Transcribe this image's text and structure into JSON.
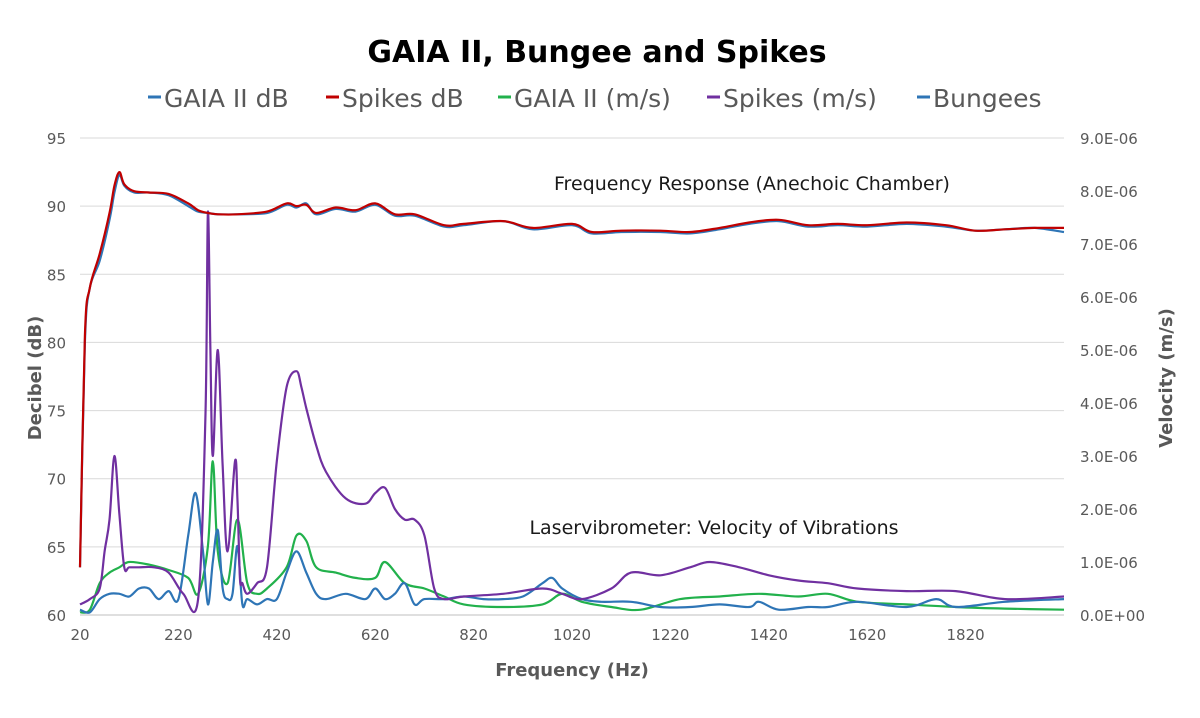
{
  "chart_data": {
    "type": "line",
    "title": "GAIA II, Bungee and Spikes",
    "xlabel": "Frequency (Hz)",
    "ylabel": "Decibel (dB)",
    "ylabel_right": "Velocity (m/s)",
    "xlim": [
      20,
      2020
    ],
    "ylim": [
      60,
      95
    ],
    "ylim_right": [
      0,
      9e-06
    ],
    "x_ticks": [
      "20",
      "220",
      "420",
      "620",
      "820",
      "1020",
      "1220",
      "1420",
      "1620",
      "1820"
    ],
    "y_ticks": [
      "60",
      "65",
      "70",
      "75",
      "80",
      "85",
      "90",
      "95"
    ],
    "y_right_ticks": [
      "0.0E+00",
      "1.0E-06",
      "2.0E-06",
      "3.0E-06",
      "4.0E-06",
      "5.0E-06",
      "6.0E-06",
      "7.0E-06",
      "8.0E-06",
      "9.0E-06"
    ],
    "grid": "horizontal",
    "legend_position": "top",
    "annotations": [
      "Frequency Response (Anechoic Chamber)",
      "Laservibrometer: Velocity of Vibrations"
    ],
    "series": [
      {
        "name": "GAIA II dB",
        "axis": "left",
        "color": "#2e75b6",
        "x": [
          20,
          30,
          40,
          60,
          80,
          90,
          100,
          110,
          130,
          160,
          200,
          240,
          260,
          280,
          300,
          340,
          400,
          440,
          460,
          480,
          500,
          540,
          580,
          620,
          660,
          700,
          760,
          800,
          880,
          940,
          1020,
          1060,
          1120,
          1200,
          1260,
          1320,
          1380,
          1440,
          1500,
          1560,
          1620,
          1700,
          1780,
          1840,
          1900,
          1960,
          2020
        ],
        "y": [
          63.5,
          80,
          84,
          86,
          89,
          91,
          92.3,
          91.5,
          91,
          91,
          90.8,
          90,
          89.6,
          89.5,
          89.4,
          89.4,
          89.5,
          90.1,
          89.9,
          90.2,
          89.4,
          89.8,
          89.6,
          90.1,
          89.3,
          89.3,
          88.5,
          88.6,
          88.9,
          88.3,
          88.6,
          88,
          88.1,
          88.1,
          88,
          88.3,
          88.7,
          88.9,
          88.5,
          88.6,
          88.5,
          88.7,
          88.5,
          88.2,
          88.3,
          88.4,
          88.1
        ]
      },
      {
        "name": "Spikes dB",
        "axis": "left",
        "color": "#c00000",
        "x": [
          20,
          30,
          40,
          60,
          80,
          90,
          100,
          110,
          130,
          160,
          200,
          240,
          260,
          280,
          300,
          340,
          400,
          440,
          460,
          480,
          500,
          540,
          580,
          620,
          660,
          700,
          760,
          800,
          880,
          940,
          1020,
          1060,
          1120,
          1200,
          1260,
          1320,
          1380,
          1440,
          1500,
          1560,
          1620,
          1700,
          1780,
          1840,
          1900,
          1960,
          2020
        ],
        "y": [
          63.5,
          80.5,
          84,
          86.5,
          89.5,
          91.5,
          92.5,
          91.6,
          91.1,
          91,
          90.9,
          90.2,
          89.7,
          89.5,
          89.4,
          89.4,
          89.6,
          90.2,
          90,
          90.1,
          89.5,
          89.9,
          89.7,
          90.2,
          89.4,
          89.4,
          88.6,
          88.7,
          88.9,
          88.4,
          88.7,
          88.1,
          88.2,
          88.2,
          88.1,
          88.4,
          88.8,
          89,
          88.6,
          88.7,
          88.6,
          88.8,
          88.6,
          88.2,
          88.3,
          88.4,
          88.4
        ]
      },
      {
        "name": "GAIA II (m/s)",
        "axis": "right",
        "color": "#22b14c",
        "x": [
          20,
          40,
          60,
          80,
          100,
          120,
          160,
          200,
          240,
          260,
          280,
          290,
          300,
          320,
          340,
          360,
          380,
          400,
          440,
          460,
          480,
          500,
          540,
          580,
          620,
          640,
          680,
          720,
          760,
          800,
          880,
          960,
          1000,
          1040,
          1100,
          1160,
          1240,
          1320,
          1400,
          1480,
          1540,
          1600,
          1700,
          1800,
          1900,
          2020
        ],
        "y": [
          5e-08,
          1e-07,
          6e-07,
          8e-07,
          9e-07,
          1e-06,
          9.5e-07,
          8.5e-07,
          7e-07,
          4e-07,
          1.3e-06,
          2.9e-06,
          1.2e-06,
          6e-07,
          1.8e-06,
          6e-07,
          4e-07,
          5e-07,
          9e-07,
          1.5e-06,
          1.4e-06,
          9e-07,
          8e-07,
          7e-07,
          7e-07,
          1e-06,
          6e-07,
          5e-07,
          3.5e-07,
          2e-07,
          1.5e-07,
          2e-07,
          4e-07,
          2.5e-07,
          1.5e-07,
          1e-07,
          3e-07,
          3.5e-07,
          4e-07,
          3.5e-07,
          4e-07,
          2.5e-07,
          2e-07,
          1.5e-07,
          1.2e-07,
          1e-07
        ]
      },
      {
        "name": "Spikes (m/s)",
        "axis": "right",
        "color": "#7030a0",
        "x": [
          20,
          40,
          60,
          70,
          80,
          90,
          100,
          110,
          120,
          140,
          170,
          200,
          230,
          260,
          275,
          280,
          285,
          290,
          300,
          310,
          320,
          335,
          340,
          345,
          350,
          360,
          380,
          400,
          420,
          440,
          460,
          470,
          480,
          500,
          520,
          560,
          600,
          620,
          640,
          660,
          680,
          700,
          720,
          740,
          760,
          800,
          880,
          960,
          1000,
          1040,
          1100,
          1140,
          1200,
          1260,
          1300,
          1360,
          1420,
          1480,
          1540,
          1600,
          1700,
          1800,
          1900,
          2020
        ],
        "y": [
          2e-07,
          3e-07,
          5e-07,
          1.2e-06,
          1.8e-06,
          3e-06,
          1.9e-06,
          9e-07,
          9e-07,
          9e-07,
          9e-07,
          8e-07,
          4e-07,
          3e-07,
          3.8e-06,
          7.6e-06,
          5e-06,
          3e-06,
          5e-06,
          2.8e-06,
          1.2e-06,
          2.9e-06,
          2.2e-06,
          7e-07,
          6e-07,
          4e-07,
          6e-07,
          9e-07,
          2.9e-06,
          4.3e-06,
          4.6e-06,
          4.3e-06,
          3.9e-06,
          3.2e-06,
          2.7e-06,
          2.2e-06,
          2.1e-06,
          2.3e-06,
          2.4e-06,
          2e-06,
          1.8e-06,
          1.8e-06,
          1.5e-06,
          5e-07,
          3e-07,
          3.5e-07,
          4e-07,
          5e-07,
          4e-07,
          3e-07,
          5e-07,
          8e-07,
          7.5e-07,
          9e-07,
          1e-06,
          9e-07,
          7.5e-07,
          6.5e-07,
          6e-07,
          5e-07,
          4.5e-07,
          4.5e-07,
          3e-07,
          3.5e-07
        ]
      },
      {
        "name": "Bungees",
        "axis": "right",
        "color": "#2e75b6",
        "x": [
          20,
          40,
          60,
          80,
          100,
          120,
          140,
          160,
          180,
          200,
          220,
          240,
          255,
          270,
          280,
          290,
          300,
          310,
          320,
          330,
          340,
          350,
          360,
          380,
          400,
          420,
          440,
          460,
          480,
          500,
          520,
          560,
          600,
          620,
          640,
          660,
          680,
          700,
          720,
          760,
          800,
          840,
          880,
          920,
          960,
          980,
          1000,
          1040,
          1080,
          1140,
          1200,
          1260,
          1320,
          1380,
          1400,
          1440,
          1500,
          1540,
          1600,
          1700,
          1760,
          1800,
          1900,
          2020
        ],
        "y": [
          1e-07,
          5e-08,
          3e-07,
          4e-07,
          4e-07,
          3.5e-07,
          5e-07,
          5e-07,
          3e-07,
          4.5e-07,
          3e-07,
          1.5e-06,
          2.3e-06,
          1.2e-06,
          2e-07,
          1e-06,
          1.6e-06,
          5e-07,
          3e-07,
          4e-07,
          1.3e-06,
          2e-07,
          3e-07,
          2e-07,
          3e-07,
          3e-07,
          8e-07,
          1.2e-06,
          8e-07,
          4e-07,
          3e-07,
          4e-07,
          3e-07,
          5e-07,
          3e-07,
          4e-07,
          6e-07,
          2e-07,
          3e-07,
          3e-07,
          3.5e-07,
          3e-07,
          3e-07,
          3.5e-07,
          6e-07,
          7e-07,
          5e-07,
          3e-07,
          2.5e-07,
          2.5e-07,
          1.5e-07,
          1.5e-07,
          2e-07,
          1.5e-07,
          2.5e-07,
          1e-07,
          1.5e-07,
          1.5e-07,
          2.5e-07,
          1.5e-07,
          3e-07,
          1.5e-07,
          2.5e-07,
          3e-07
        ]
      }
    ]
  }
}
